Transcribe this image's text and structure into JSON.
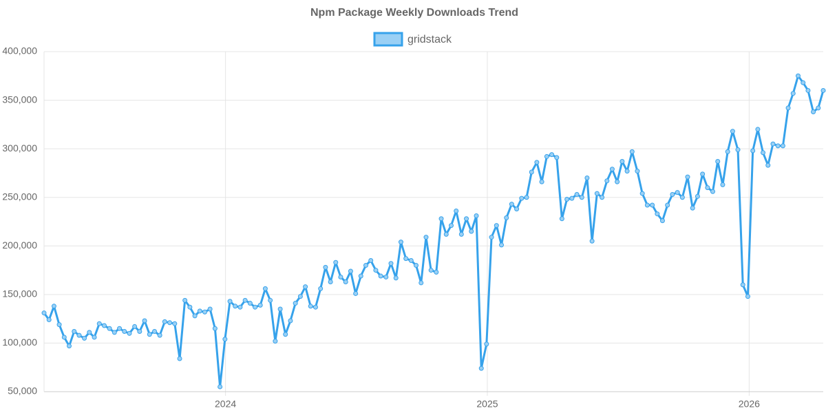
{
  "chart_data": {
    "type": "line",
    "title": "Npm Package Weekly Downloads Trend",
    "x": [
      2023.307,
      2023.326,
      2023.345,
      2023.365,
      2023.384,
      2023.403,
      2023.422,
      2023.441,
      2023.461,
      2023.48,
      2023.499,
      2023.518,
      2023.537,
      2023.557,
      2023.576,
      2023.595,
      2023.614,
      2023.633,
      2023.653,
      2023.672,
      2023.691,
      2023.71,
      2023.729,
      2023.749,
      2023.768,
      2023.787,
      2023.806,
      2023.825,
      2023.845,
      2023.864,
      2023.883,
      2023.902,
      2023.921,
      2023.941,
      2023.96,
      2023.979,
      2023.998,
      2024.017,
      2024.037,
      2024.056,
      2024.075,
      2024.094,
      2024.113,
      2024.133,
      2024.152,
      2024.171,
      2024.19,
      2024.209,
      2024.229,
      2024.248,
      2024.267,
      2024.286,
      2024.305,
      2024.325,
      2024.344,
      2024.363,
      2024.382,
      2024.401,
      2024.421,
      2024.44,
      2024.459,
      2024.478,
      2024.497,
      2024.517,
      2024.536,
      2024.555,
      2024.574,
      2024.593,
      2024.613,
      2024.632,
      2024.651,
      2024.67,
      2024.689,
      2024.709,
      2024.728,
      2024.747,
      2024.766,
      2024.785,
      2024.805,
      2024.824,
      2024.843,
      2024.862,
      2024.881,
      2024.901,
      2024.92,
      2024.939,
      2024.958,
      2024.977,
      2024.997,
      2025.016,
      2025.035,
      2025.054,
      2025.073,
      2025.093,
      2025.112,
      2025.131,
      2025.15,
      2025.169,
      2025.189,
      2025.208,
      2025.227,
      2025.246,
      2025.265,
      2025.285,
      2025.304,
      2025.323,
      2025.342,
      2025.361,
      2025.381,
      2025.4,
      2025.419,
      2025.438,
      2025.457,
      2025.477,
      2025.496,
      2025.515,
      2025.534,
      2025.553,
      2025.573,
      2025.592,
      2025.611,
      2025.63,
      2025.649,
      2025.669,
      2025.688,
      2025.707,
      2025.726,
      2025.745,
      2025.765,
      2025.784,
      2025.803,
      2025.822,
      2025.841,
      2025.861,
      2025.88,
      2025.899,
      2025.918,
      2025.937,
      2025.957,
      2025.976,
      2025.995,
      2026.014,
      2026.033,
      2026.053,
      2026.072,
      2026.091,
      2026.11,
      2026.129,
      2026.149,
      2026.168,
      2026.187,
      2026.206,
      2026.225,
      2026.245,
      2026.264,
      2026.283
    ],
    "series": [
      {
        "name": "gridstack",
        "color": "#36a2eb",
        "fill": "#9ad0f5",
        "values": [
          131000,
          124000,
          138000,
          119000,
          106000,
          97000,
          112000,
          108000,
          105000,
          111000,
          106000,
          120000,
          118000,
          115000,
          111000,
          115000,
          112000,
          110000,
          117000,
          112000,
          123000,
          109000,
          112000,
          108000,
          122000,
          121000,
          120000,
          84000,
          144000,
          137000,
          128000,
          133000,
          132000,
          135000,
          115000,
          55000,
          104000,
          143000,
          138000,
          137000,
          144000,
          141000,
          137000,
          139000,
          156000,
          144000,
          102000,
          135000,
          109000,
          123000,
          141000,
          148000,
          158000,
          138000,
          137000,
          156000,
          178000,
          163000,
          183000,
          168000,
          163000,
          174000,
          151000,
          169000,
          180000,
          185000,
          175000,
          169000,
          168000,
          182000,
          167000,
          204000,
          187000,
          185000,
          180000,
          162000,
          209000,
          175000,
          173000,
          228000,
          212000,
          221000,
          236000,
          212000,
          228000,
          215000,
          231000,
          74000,
          99000,
          209000,
          221000,
          201000,
          229000,
          243000,
          238000,
          249000,
          250000,
          276000,
          286000,
          266000,
          292000,
          294000,
          291000,
          228000,
          248000,
          249000,
          253000,
          250000,
          270000,
          205000,
          254000,
          250000,
          267000,
          279000,
          266000,
          287000,
          277000,
          297000,
          277000,
          254000,
          242000,
          242000,
          233000,
          226000,
          242000,
          253000,
          255000,
          250000,
          271000,
          239000,
          251000,
          274000,
          260000,
          256000,
          287000,
          263000,
          297000,
          318000,
          299000,
          160000,
          148000,
          298000,
          320000,
          296000,
          283000,
          305000,
          303000,
          303000,
          342000,
          357000,
          375000,
          368000,
          360000,
          338000,
          342000,
          360000
        ]
      }
    ],
    "xlim": [
      2023.307,
      2026.283
    ],
    "xticks": [
      2024,
      2025,
      2026
    ],
    "ylim": [
      50000,
      400000
    ],
    "yticks": [
      {
        "value": 50000,
        "label": "50,000"
      },
      {
        "value": 100000,
        "label": "100,000"
      },
      {
        "value": 150000,
        "label": "150,000"
      },
      {
        "value": 200000,
        "label": "200,000"
      },
      {
        "value": 250000,
        "label": "250,000"
      },
      {
        "value": 300000,
        "label": "300,000"
      },
      {
        "value": 350000,
        "label": "350,000"
      },
      {
        "value": 400000,
        "label": "400,000"
      }
    ],
    "grid": true,
    "legend": "top"
  }
}
